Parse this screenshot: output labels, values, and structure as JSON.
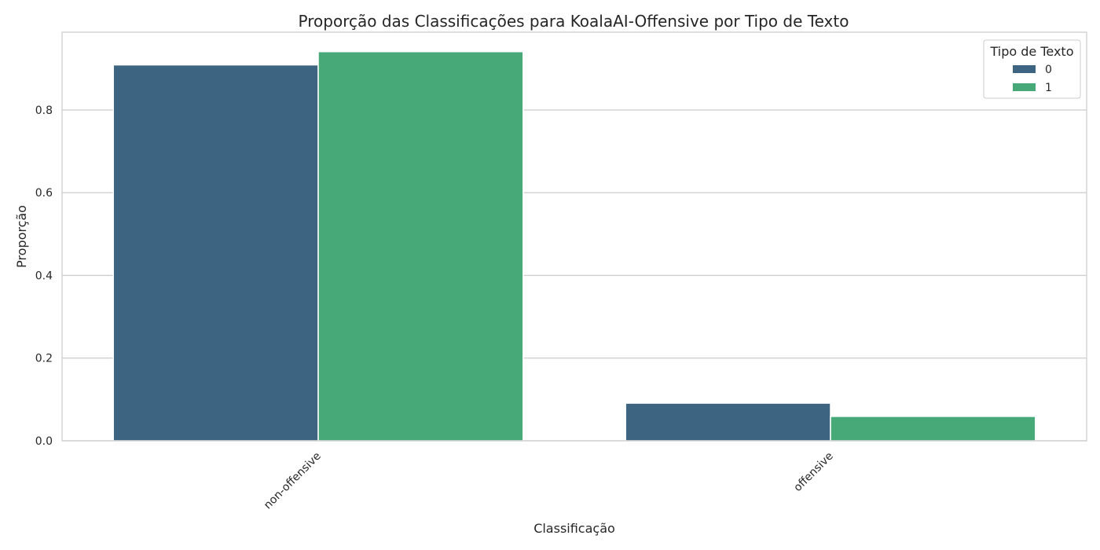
{
  "chart_data": {
    "type": "bar",
    "title": "Proporção das Classificações para KoalaAI-Offensive por Tipo de Texto",
    "xlabel": "Classificação",
    "ylabel": "Proporção",
    "categories": [
      "non-offensive",
      "offensive"
    ],
    "series": [
      {
        "name": "0",
        "values": [
          0.909,
          0.091
        ],
        "color": "#3d6581"
      },
      {
        "name": "1",
        "values": [
          0.941,
          0.059
        ],
        "color": "#46a977"
      }
    ],
    "ylim": [
      0,
      0.988
    ],
    "yticks": [
      0.0,
      0.2,
      0.4,
      0.6,
      0.8
    ],
    "ytick_labels": [
      "0.0",
      "0.2",
      "0.4",
      "0.6",
      "0.8"
    ],
    "grid": true,
    "legend": {
      "title": "Tipo de Texto",
      "placement": "top-right"
    }
  }
}
